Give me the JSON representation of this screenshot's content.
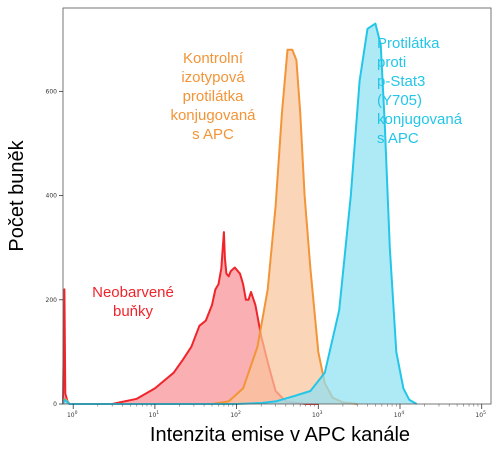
{
  "chart_data": {
    "type": "area",
    "xlabel": "Intenzita emise v APC kanále",
    "ylabel": "Počet buněk",
    "x_scale": "log",
    "xlim": [
      0.75,
      130000
    ],
    "ylim": [
      0,
      760
    ],
    "x_ticks": [
      {
        "value": 1,
        "label": "10",
        "exp": "0"
      },
      {
        "value": 10,
        "label": "10",
        "exp": "1"
      },
      {
        "value": 100,
        "label": "10",
        "exp": "2"
      },
      {
        "value": 1000,
        "label": "10",
        "exp": "3"
      },
      {
        "value": 10000,
        "label": "10",
        "exp": "4"
      },
      {
        "value": 100000,
        "label": "10",
        "exp": "5"
      }
    ],
    "y_ticks": [
      {
        "value": 0,
        "label": "0"
      },
      {
        "value": 200,
        "label": "200"
      },
      {
        "value": 400,
        "label": "400"
      },
      {
        "value": 600,
        "label": "600"
      }
    ],
    "series": [
      {
        "name": "Neobarvené buňky",
        "color": "#f0252b",
        "fill": "#f89096",
        "x": [
          0.75,
          0.78,
          0.8,
          0.85,
          0.9,
          3,
          6,
          10,
          13,
          17,
          22,
          28,
          35,
          42,
          50,
          55,
          60,
          65,
          70,
          72,
          75,
          80,
          85,
          95,
          110,
          120,
          130,
          140,
          150,
          170,
          200,
          250,
          300,
          400,
          700,
          1000
        ],
        "values": [
          0,
          220,
          20,
          6,
          0,
          0,
          10,
          30,
          45,
          60,
          85,
          110,
          150,
          160,
          190,
          220,
          230,
          260,
          330,
          280,
          250,
          245,
          255,
          262,
          250,
          230,
          200,
          200,
          215,
          190,
          130,
          70,
          25,
          5,
          0,
          0
        ]
      },
      {
        "name": "Kontrolní izotypová protilátka konjugovaná s APC",
        "color": "#f29538",
        "fill": "#f9c59b",
        "x": [
          0.75,
          0.78,
          0.82,
          0.9,
          1,
          10,
          50,
          80,
          120,
          180,
          240,
          300,
          360,
          420,
          480,
          540,
          600,
          680,
          800,
          1000,
          1200,
          1500,
          2000,
          3000
        ],
        "values": [
          0,
          10,
          8,
          0,
          0,
          0,
          0,
          5,
          30,
          110,
          220,
          380,
          560,
          680,
          680,
          660,
          560,
          400,
          260,
          100,
          40,
          12,
          3,
          0
        ]
      },
      {
        "name": "Protilátka proti p-Stat3 (Y705) konjugovaná s APC",
        "color": "#23c6e8",
        "fill": "#8fe0f2",
        "x": [
          0.75,
          0.78,
          0.82,
          0.9,
          1,
          100,
          200,
          300,
          500,
          800,
          1200,
          1800,
          2500,
          3200,
          4000,
          5000,
          5800,
          6500,
          7500,
          9000,
          11000,
          13000,
          16000
        ],
        "values": [
          0,
          8,
          6,
          0,
          0,
          0,
          2,
          5,
          15,
          25,
          60,
          180,
          400,
          620,
          720,
          730,
          690,
          540,
          300,
          100,
          30,
          8,
          0
        ]
      }
    ],
    "annotations": [
      {
        "series": 0,
        "lines": [
          "Neobarvené",
          "buňky"
        ]
      },
      {
        "series": 1,
        "lines": [
          "Kontrolní",
          "izotypová",
          "protilátka",
          "konjugovaná",
          "s APC"
        ]
      },
      {
        "series": 2,
        "lines": [
          "Protilátka",
          "proti",
          "p-Stat3",
          "(Y705)",
          "konjugovaná",
          "s APC"
        ]
      }
    ],
    "grid": false,
    "legend": "none"
  }
}
